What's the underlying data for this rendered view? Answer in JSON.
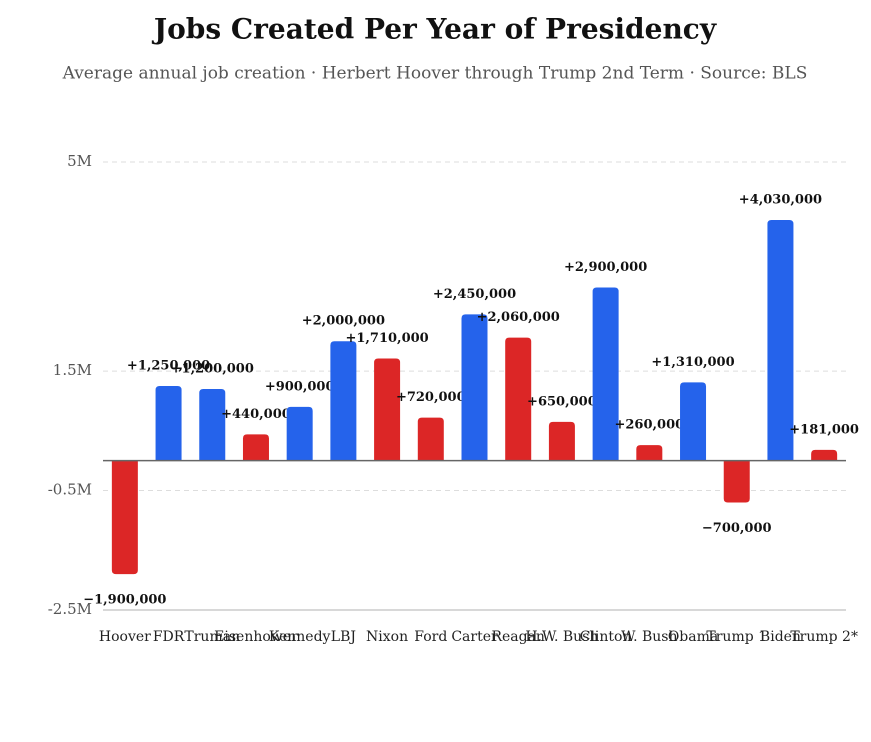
{
  "chart_data": {
    "type": "bar",
    "title": "Jobs Created Per Year of Presidency",
    "subtitle": "Average annual job creation · Herbert Hoover through Trump 2nd Term · Source: BLS",
    "categories": [
      "Hoover",
      "FDR",
      "Truman",
      "Eisenhower",
      "Kennedy",
      "LBJ",
      "Nixon",
      "Ford",
      "Carter",
      "Reagan",
      "H.W. Bush",
      "Clinton",
      "W. Bush",
      "Obama",
      "Trump 1",
      "Biden",
      "Trump 2*"
    ],
    "values": [
      -1900000,
      1250000,
      1200000,
      440000,
      900000,
      2000000,
      1710000,
      720000,
      2450000,
      2060000,
      650000,
      2900000,
      260000,
      1310000,
      -700000,
      4030000,
      181000
    ],
    "value_labels": [
      "−1,900,000",
      "+1,250,000",
      "+1,200,000",
      "+440,000",
      "+900,000",
      "+2,000,000",
      "+1,710,000",
      "+720,000",
      "+2,450,000",
      "+2,060,000",
      "+650,000",
      "+2,900,000",
      "+260,000",
      "+1,310,000",
      "−700,000",
      "+4,030,000",
      "+181,000"
    ],
    "colors": [
      "#dc2626",
      "#2563eb",
      "#2563eb",
      "#dc2626",
      "#2563eb",
      "#2563eb",
      "#dc2626",
      "#dc2626",
      "#2563eb",
      "#dc2626",
      "#dc2626",
      "#2563eb",
      "#dc2626",
      "#2563eb",
      "#dc2626",
      "#2563eb",
      "#dc2626"
    ],
    "ylim": [
      -2500000,
      5000000
    ],
    "yticks": [
      {
        "value": 5000000,
        "label": "5M"
      },
      {
        "value": 1500000,
        "label": "1.5M"
      },
      {
        "value": -500000,
        "label": "-0.5M"
      },
      {
        "value": -2500000,
        "label": "-2.5M"
      }
    ],
    "grid": true
  }
}
